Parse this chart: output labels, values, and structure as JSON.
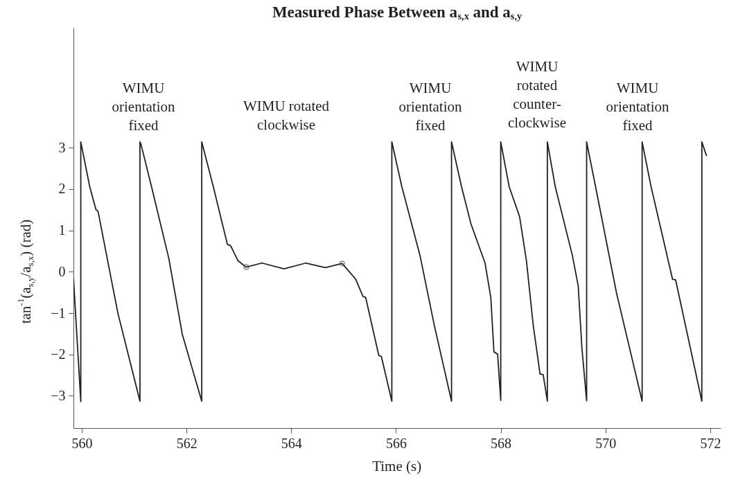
{
  "chart_data": {
    "type": "line",
    "title": "Measured Phase Between a$_{s,x}$ and a$_{s,y}$",
    "xlabel": "Time (s)",
    "ylabel": "tan$^{-1}$(a$_{s,y}$/a$_{s,x}$) (rad)",
    "xlim": [
      559.84,
      572.2
    ],
    "ylim": [
      -3.78,
      5.9
    ],
    "xticks": [
      560,
      562,
      564,
      566,
      568,
      570,
      572
    ],
    "yticks": [
      -3,
      -2,
      -1,
      0,
      1,
      2,
      3
    ],
    "series": [
      {
        "color": "#231f20",
        "line_style": "solid",
        "x": [
          559.84,
          559.98,
          559.98,
          560.15,
          560.27,
          560.31,
          560.56,
          560.69,
          561.11,
          561.11,
          561.13,
          561.33,
          561.66,
          561.92,
          562.29,
          562.29,
          562.51,
          562.78,
          562.84,
          562.98,
          563.14,
          563.44,
          563.86,
          564.28,
          564.65,
          564.97,
          565.23,
          565.37,
          565.42,
          565.67,
          565.72,
          565.92,
          565.92,
          566.11,
          566.46,
          566.73,
          567.06,
          567.06,
          567.25,
          567.43,
          567.7,
          567.81,
          567.87,
          567.94,
          568.0,
          568.0,
          568.16,
          568.36,
          568.49,
          568.62,
          568.75,
          568.81,
          568.89,
          568.89,
          569.04,
          569.37,
          569.48,
          569.55,
          569.64,
          569.64,
          569.81,
          570.21,
          570.7,
          570.7,
          570.87,
          571.28,
          571.34,
          571.84,
          571.84,
          571.93
        ],
        "values": [
          -0.15,
          -3.14,
          3.14,
          2.06,
          1.5,
          1.46,
          -0.17,
          -1.01,
          -3.13,
          3.14,
          3.08,
          2.06,
          0.33,
          -1.52,
          -3.13,
          3.14,
          2.06,
          0.66,
          0.63,
          0.27,
          0.11,
          0.21,
          0.07,
          0.21,
          0.1,
          0.2,
          -0.18,
          -0.6,
          -0.62,
          -2.02,
          -2.05,
          -3.13,
          3.14,
          2.06,
          0.38,
          -1.29,
          -3.13,
          3.14,
          2.06,
          1.16,
          0.21,
          -0.62,
          -1.94,
          -1.99,
          -3.11,
          3.14,
          2.06,
          1.33,
          0.27,
          -1.29,
          -2.47,
          -2.49,
          -3.13,
          3.14,
          2.06,
          0.38,
          -0.35,
          -1.85,
          -3.12,
          3.14,
          2.06,
          -0.51,
          -3.13,
          3.14,
          2.06,
          -0.18,
          -0.2,
          -3.13,
          3.14,
          2.8
        ]
      },
      {
        "type": "scatter",
        "color": "#555555",
        "marker": "circle",
        "x": [
          563.14,
          564.97
        ],
        "values": [
          0.11,
          0.2
        ]
      }
    ],
    "annotations": [
      "WIMU\norientation\nfixed",
      "WIMU rotated\nclockwise",
      "WIMU\norientation\nfixed",
      "WIMU\nrotated\ncounter-\nclockwise",
      "WIMU\norientation\nfixed"
    ]
  }
}
